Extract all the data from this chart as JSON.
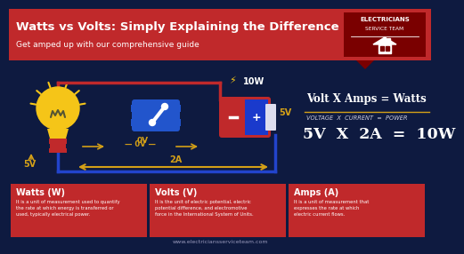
{
  "bg_color": "#0e1a40",
  "header_bg": "#c0292b",
  "header_title": "Watts vs Volts: Simply Explaining the Difference",
  "header_subtitle": "Get amped up with our comprehensive guide",
  "formula_line1": "Volt X Amps = Watts",
  "formula_line2": "VOLTAGE  X  CURRENT  =  POWER",
  "formula_line3": "5V  X  2A  =  10W",
  "label_5v_left": "5V",
  "label_0v": "— 0V —",
  "label_10w": "10W",
  "label_5v_right": "5V",
  "label_2a": "← 2A →",
  "box1_title": "Watts (W)",
  "box1_text": "It is a unit of measurement used to quantify\nthe rate at which energy is transferred or\nused, typically electrical power.",
  "box2_title": "Volts (V)",
  "box2_text": "It is the unit of electric potential, electric\npotential difference, and electromotive\nforce in the International System of Units.",
  "box3_title": "Amps (A)",
  "box3_text": "It is a unit of measurement that\nexpresses the rate at which\nelectric current flows.",
  "footer_text": "www.electriciansserviceteam.com",
  "red_color": "#c0292b",
  "gold_color": "#d4a017",
  "white": "#ffffff",
  "light_gray": "#ccccdd",
  "navy": "#0e1a40",
  "blue_wire": "#2244cc",
  "switch_blue": "#2255cc",
  "bat_blue": "#1a3acc",
  "bulb_yellow": "#f5c518",
  "logo_dark_red": "#7a0000"
}
